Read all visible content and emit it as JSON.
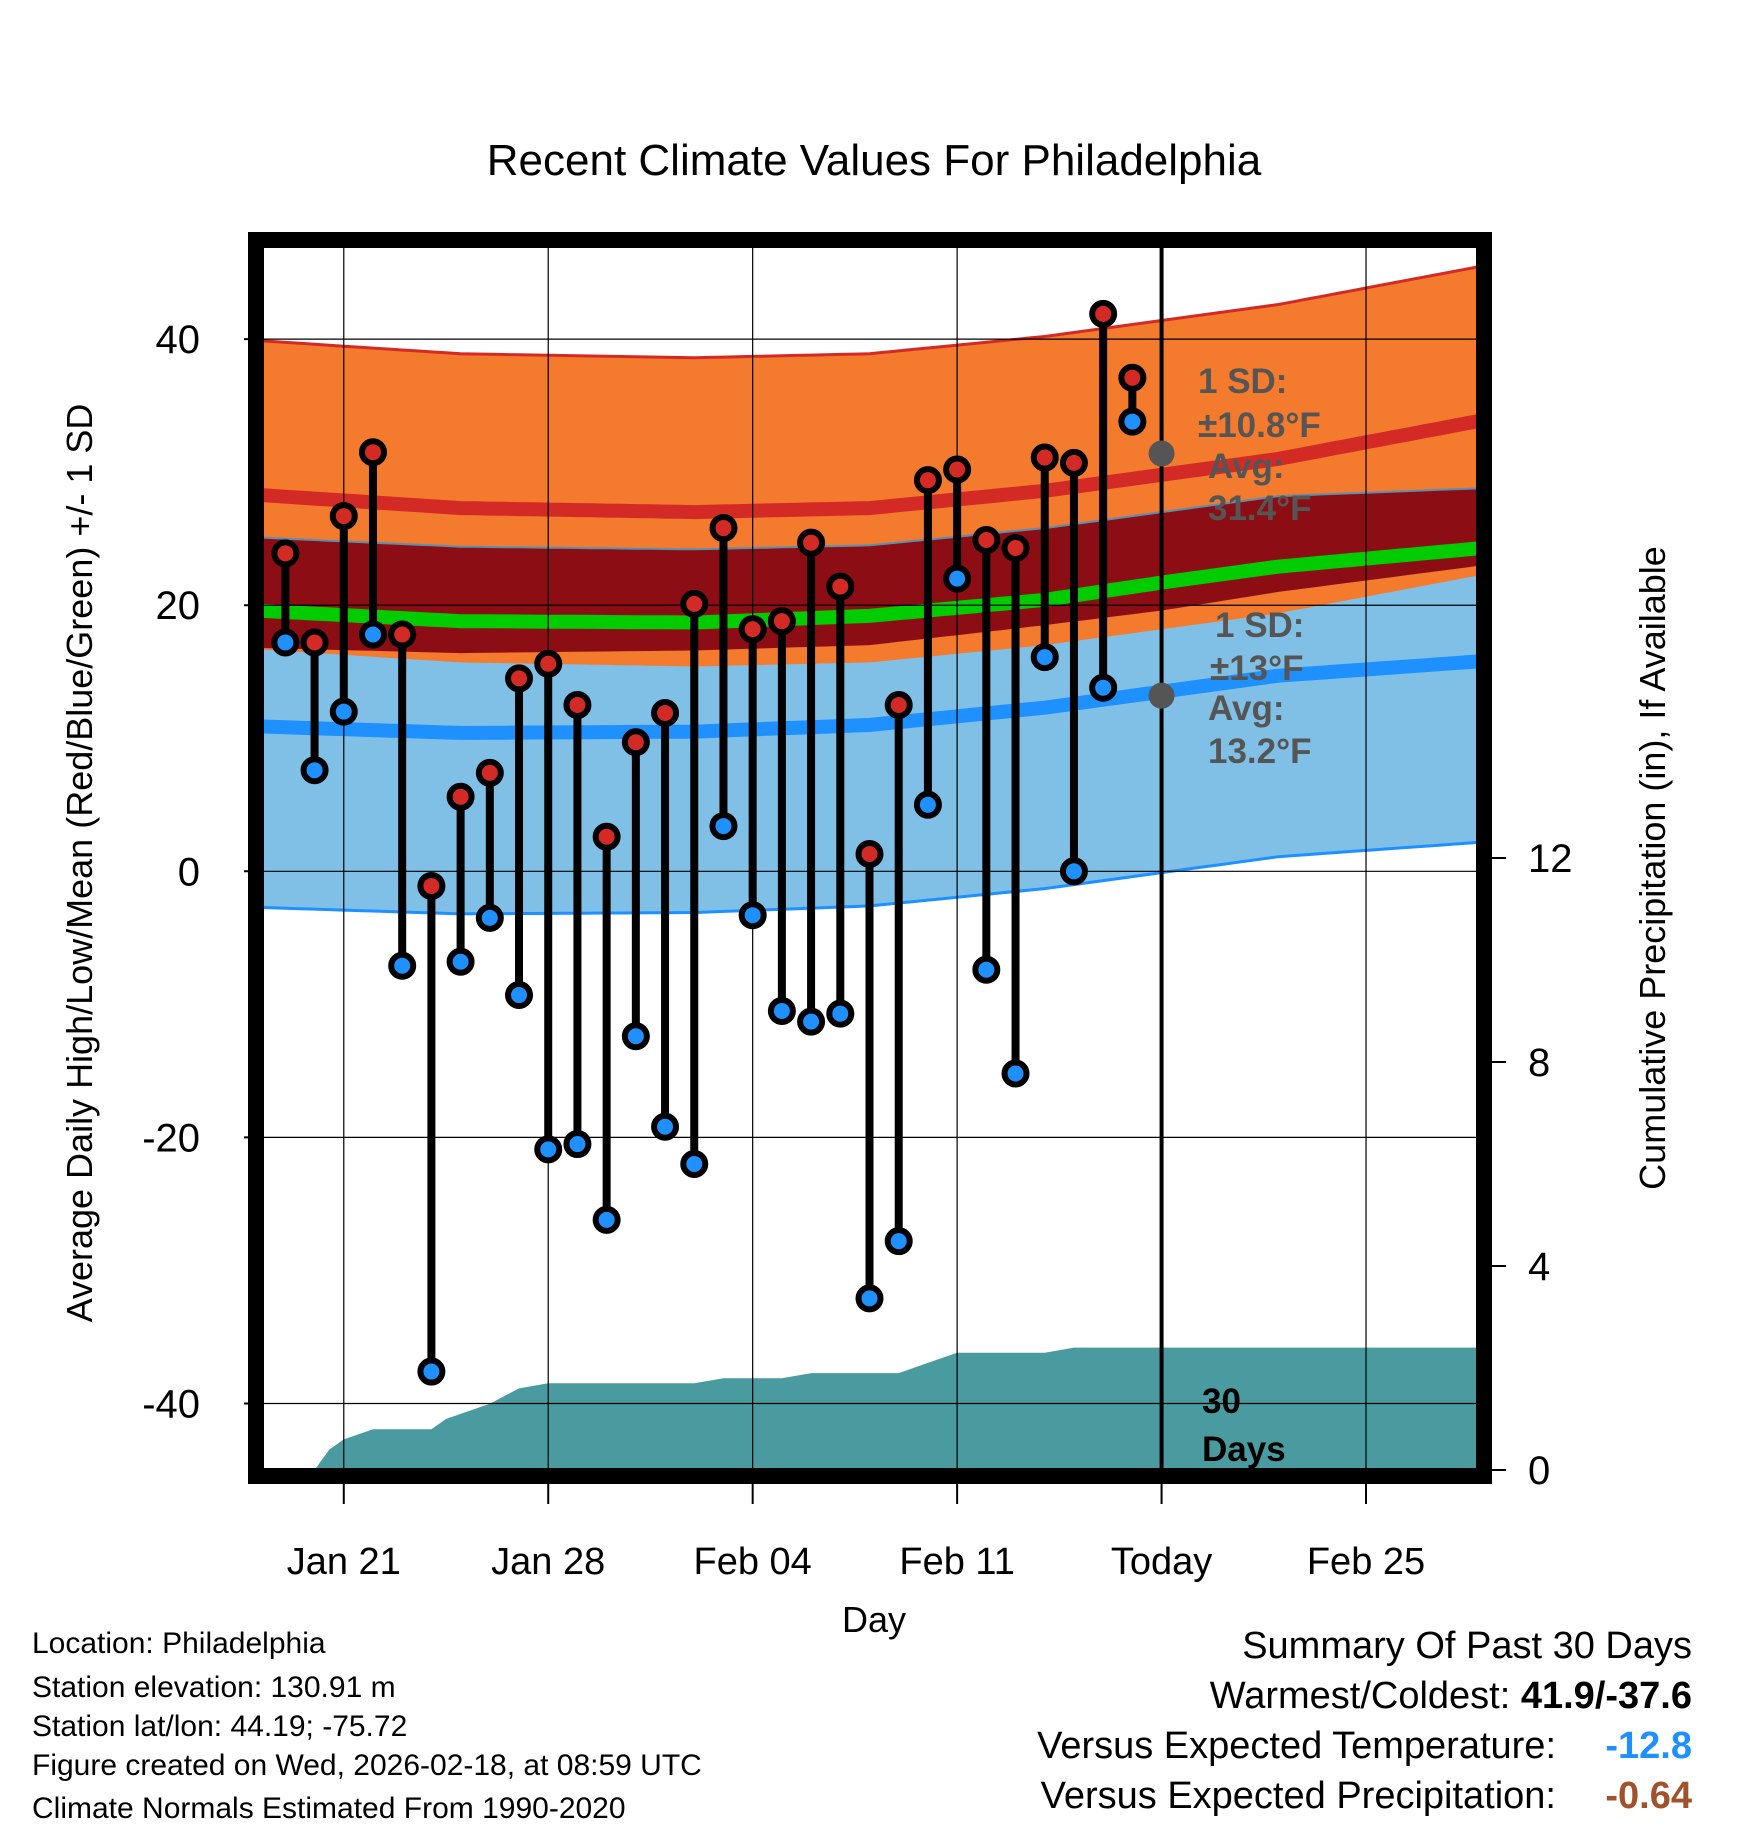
{
  "chart_data": {
    "type": "line",
    "title": "Recent Climate Values For Philadelphia",
    "xlabel": "Day",
    "ylabel": "Average Daily High/Low/Mean (Red/Blue/Green) +/- 1 SD",
    "y2label": "Cumulative Precipitation (in), If Available",
    "ylim": [
      -45,
      47
    ],
    "y_ticks": [
      "40",
      "20",
      "0",
      "-20",
      "-40"
    ],
    "y_tick_values": [
      40,
      20,
      0,
      -20,
      -40
    ],
    "y2lim": [
      0,
      24
    ],
    "y2_ticks": [
      "12",
      "8",
      "4",
      "0"
    ],
    "y2_tick_values": [
      12,
      8,
      4,
      0
    ],
    "xlim": [
      -2.8,
      38.8
    ],
    "x_tick_labels": [
      "Jan 21",
      "Jan 28",
      "Feb 04",
      "Feb 11",
      "Today",
      "Feb 25"
    ],
    "x_tick_values": [
      0,
      7,
      14,
      21,
      28,
      35
    ],
    "today_day": 28,
    "days": [
      -2,
      -1,
      0,
      1,
      2,
      3,
      4,
      5,
      6,
      7,
      8,
      9,
      10,
      11,
      12,
      13,
      14,
      15,
      16,
      17,
      18,
      19,
      20,
      21,
      22,
      23,
      24,
      25,
      26,
      27
    ],
    "highs": [
      23.9,
      17.2,
      26.7,
      31.5,
      17.8,
      -1.1,
      5.6,
      7.4,
      14.5,
      15.6,
      12.5,
      2.6,
      9.7,
      11.9,
      20.1,
      25.8,
      18.2,
      18.8,
      24.7,
      21.4,
      1.3,
      12.5,
      29.4,
      30.2,
      24.9,
      24.3,
      31.1,
      30.7,
      41.9,
      37.1
    ],
    "lows": [
      17.2,
      7.6,
      12.0,
      17.8,
      -7.1,
      -37.6,
      -6.8,
      -3.5,
      -9.3,
      -20.9,
      -20.5,
      -26.2,
      -12.4,
      -19.2,
      -22.0,
      3.4,
      -3.3,
      -10.5,
      -11.3,
      -10.7,
      -32.1,
      -27.8,
      5.0,
      22.0,
      -7.4,
      -15.2,
      16.1,
      0.0,
      13.8,
      33.8
    ],
    "normal_high": {
      "x": [
        -3,
        4,
        12,
        18,
        24,
        28,
        32,
        39
      ],
      "mean": [
        28.3,
        27.3,
        27.0,
        27.3,
        28.6,
        29.8,
        31.0,
        33.9
      ],
      "sd": 11.6
    },
    "normal_low": {
      "x": [
        -3,
        4,
        12,
        18,
        24,
        28,
        32,
        39
      ],
      "mean": [
        10.9,
        10.4,
        10.5,
        11.0,
        12.3,
        13.5,
        14.7,
        15.8
      ],
      "sd": 13.6
    },
    "normal_mean": {
      "x": [
        -3,
        4,
        12,
        18,
        24,
        28,
        32,
        39
      ],
      "mean": [
        19.6,
        18.8,
        18.7,
        19.2,
        20.4,
        21.7,
        22.9,
        24.3
      ]
    },
    "normal_mean_band": {
      "lower": [
        16.8,
        16.4,
        16.6,
        17.0,
        18.5,
        19.6,
        21.0,
        23.0
      ],
      "upper": [
        25.1,
        24.4,
        24.2,
        24.5,
        25.8,
        27.0,
        28.2,
        28.8
      ]
    },
    "precip_cumulative": {
      "x": [
        -2,
        -1,
        -0.5,
        0,
        1,
        2,
        3,
        3.5,
        4,
        5,
        6,
        7,
        8,
        9,
        10,
        11,
        12,
        13,
        14,
        15,
        16,
        17,
        18,
        19,
        20,
        21,
        22,
        23,
        24,
        25,
        26,
        27,
        28,
        29,
        30,
        31,
        32,
        33,
        34,
        35,
        36,
        37,
        38,
        38.8
      ],
      "values": [
        0,
        0,
        0.4,
        0.6,
        0.8,
        0.8,
        0.8,
        1.0,
        1.1,
        1.3,
        1.6,
        1.7,
        1.7,
        1.7,
        1.7,
        1.7,
        1.7,
        1.8,
        1.8,
        1.8,
        1.9,
        1.9,
        1.9,
        1.9,
        2.1,
        2.3,
        2.3,
        2.3,
        2.3,
        2.4,
        2.4,
        2.4,
        2.4,
        2.4,
        2.4,
        2.4,
        2.4,
        2.4,
        2.4,
        2.4,
        2.4,
        2.4,
        2.4,
        2.4
      ]
    },
    "annotations": {
      "high_sd_line1": "1 SD:",
      "high_sd_line2": "±10.8°F",
      "high_avg_line1": "Avg:",
      "high_avg_line2": "31.4°F",
      "low_sd_line1": "1 SD:",
      "low_sd_line2": "±13°F",
      "low_avg_line1": "Avg:",
      "low_avg_line2": "13.2°F",
      "days_line1": "30",
      "days_line2": "Days",
      "high_avg_value": 31.4,
      "low_avg_value": 13.2
    },
    "colors": {
      "high_band": "#f47a2e",
      "high_line": "#d42a26",
      "mean_band": "#8c0e14",
      "mean_line": "#00cc00",
      "low_band": "#80c0e6",
      "low_line": "#1e90ff",
      "high_dot": "#d42a26",
      "low_dot": "#1e90ff",
      "precip": "#4a9ba0",
      "annotation": "#555555"
    }
  },
  "info": {
    "location": "Location: Philadelphia",
    "elevation": "Station elevation: 130.91 m",
    "latlon": "Station lat/lon: 44.19; -75.72",
    "created": "Figure created on Wed, 2026-02-18, at 08:59 UTC",
    "normals": "Climate Normals Estimated From 1990-2020"
  },
  "summary": {
    "title": "Summary Of Past 30 Days",
    "warm_cold_label": "Warmest/Coldest: ",
    "warm_cold_value": "41.9/-37.6",
    "temp_label": "Versus Expected Temperature:",
    "temp_value": "-12.8",
    "precip_label": "Versus Expected Precipitation:",
    "precip_value": "-0.64",
    "temp_color": "#1e90ff",
    "precip_color": "#a0522d"
  }
}
